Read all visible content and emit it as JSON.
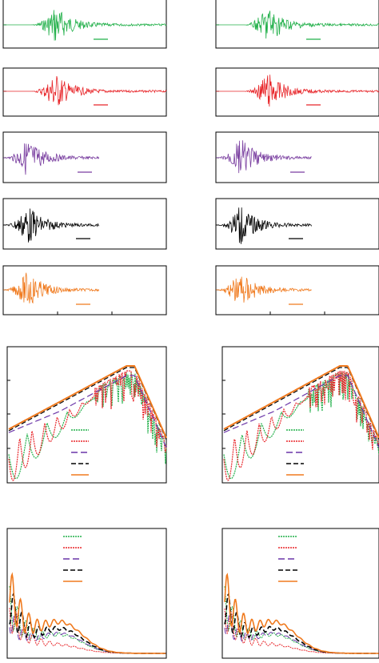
{
  "figure": {
    "wave_colors": [
      "#22b04a",
      "#e8262a",
      "#7a3fa0",
      "#000000",
      "#f07a1e"
    ],
    "spectrum_series": [
      {
        "color": "#22b04a",
        "dash": "2,1"
      },
      {
        "color": "#e8262a",
        "dash": "2,1"
      },
      {
        "color": "#6a35a8",
        "dash": "8,4"
      },
      {
        "color": "#000000",
        "dash": "6,3"
      },
      {
        "color": "#f07a1e",
        "dash": ""
      }
    ]
  }
}
